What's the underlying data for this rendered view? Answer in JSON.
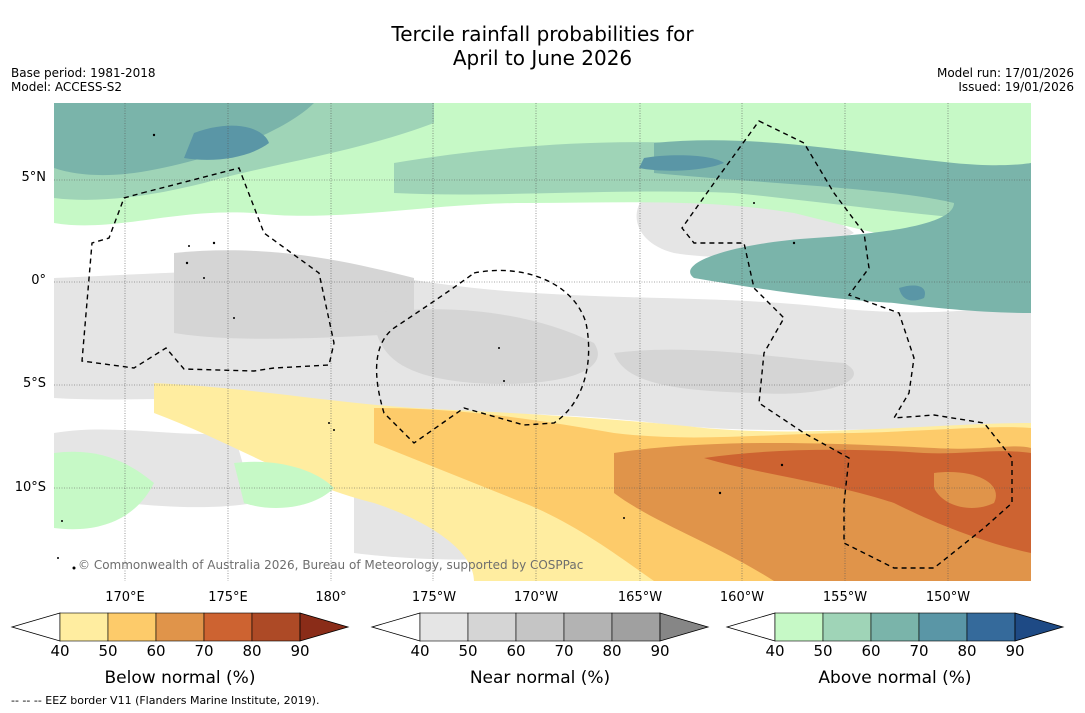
{
  "title": {
    "line1": "Tercile rainfall probabilities for",
    "line2": "April to June 2026"
  },
  "meta": {
    "base_period": "Base period: 1981-2018",
    "model": "Model: ACCESS-S2",
    "model_run": "Model run: 17/01/2026",
    "issued": "Issued: 19/01/2026"
  },
  "axes": {
    "lat_ticks": [
      "5°N",
      "0°",
      "5°S",
      "10°S"
    ],
    "lon_ticks": [
      "170°E",
      "175°E",
      "180°",
      "175°W",
      "170°W",
      "165°W",
      "160°W",
      "155°W",
      "150°W"
    ]
  },
  "attribution": "© Commonwealth of Australia 2026, Bureau of Meteorology, supported by COSPPac",
  "colorbars": [
    {
      "title": "Below normal (%)",
      "labels": [
        "40",
        "50",
        "60",
        "70",
        "80",
        "90"
      ],
      "colors": [
        "#ffffff",
        "#ffeda0",
        "#fdcb6a",
        "#e0944a",
        "#cd6331",
        "#ad4a26",
        "#8a2c18"
      ]
    },
    {
      "title": "Near normal (%)",
      "labels": [
        "40",
        "50",
        "60",
        "70",
        "80",
        "90"
      ],
      "colors": [
        "#ffffff",
        "#e5e5e5",
        "#d5d5d5",
        "#c5c5c5",
        "#b3b3b3",
        "#a0a0a0",
        "#868686"
      ]
    },
    {
      "title": "Above normal (%)",
      "labels": [
        "40",
        "50",
        "60",
        "70",
        "80",
        "90"
      ],
      "colors": [
        "#ffffff",
        "#c6f9c6",
        "#9fd4b7",
        "#7ab4aa",
        "#5a96a6",
        "#356a9b",
        "#1e4a85"
      ]
    }
  ],
  "footer": "--  --  -- EEZ border V11 (Flanders Marine Institute, 2019)."
}
